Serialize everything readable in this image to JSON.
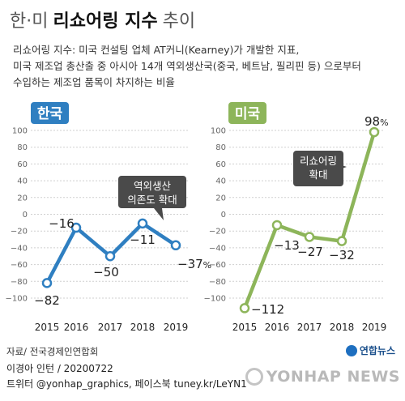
{
  "title": {
    "part1": "한·미",
    "part2": "리쇼어링 지수",
    "part3": "추이"
  },
  "description": [
    "리쇼어링 지수: 미국 컨설팅 업체 AT커니(Kearney)가 개발한 지표,",
    "미국 제조업 총산출 중 아시아 14개 역외생산국(중국, 베트남, 필리핀 등) 으로부터",
    "수입하는 제조업 품목이 차지하는 비율"
  ],
  "source": "자료/ 전국경제인연합회",
  "brand": "연합뉴스",
  "credit": [
    "이경아 인턴 / 20200722",
    "트위터 @yonhap_graphics, 페이스북 tuney.kr/LeYN1"
  ],
  "watermark": "YONHAP NEWS",
  "colors": {
    "korea": "#2f7fc1",
    "usa": "#8db55a"
  },
  "chart_data": [
    {
      "type": "line",
      "title": "한국",
      "categories": [
        "2015",
        "2016",
        "2017",
        "2018",
        "2019"
      ],
      "values": [
        -82,
        -16,
        -50,
        -11,
        -37
      ],
      "point_labels": [
        "−82",
        "−16",
        "−50",
        "−11",
        "−37%"
      ],
      "ylim": [
        -100,
        100
      ],
      "yticks": [
        100,
        80,
        60,
        40,
        20,
        0,
        -20,
        -40,
        -60,
        -80,
        -100
      ],
      "ytick_labels": [
        "100",
        "80",
        "60",
        "40",
        "20",
        "0",
        "−20",
        "−40",
        "−60",
        "−80",
        "−100"
      ],
      "annotation": [
        "역외생산",
        "의존도 확대"
      ],
      "color": "#2f7fc1"
    },
    {
      "type": "line",
      "title": "미국",
      "categories": [
        "2015",
        "2016",
        "2017",
        "2018",
        "2019"
      ],
      "values": [
        -112,
        -13,
        -27,
        -32,
        98
      ],
      "point_labels": [
        "−112",
        "−13",
        "−27",
        "−32",
        "98%"
      ],
      "ylim": [
        -112,
        100
      ],
      "yticks": [
        100,
        80,
        60,
        40,
        20,
        0,
        -20,
        -40,
        -60,
        -80,
        -100
      ],
      "ytick_labels": [
        "100",
        "80",
        "60",
        "40",
        "20",
        "0",
        "−20",
        "−40",
        "−60",
        "−80",
        "−100"
      ],
      "annotation": [
        "리쇼어링",
        "확대"
      ],
      "color": "#8db55a"
    }
  ]
}
